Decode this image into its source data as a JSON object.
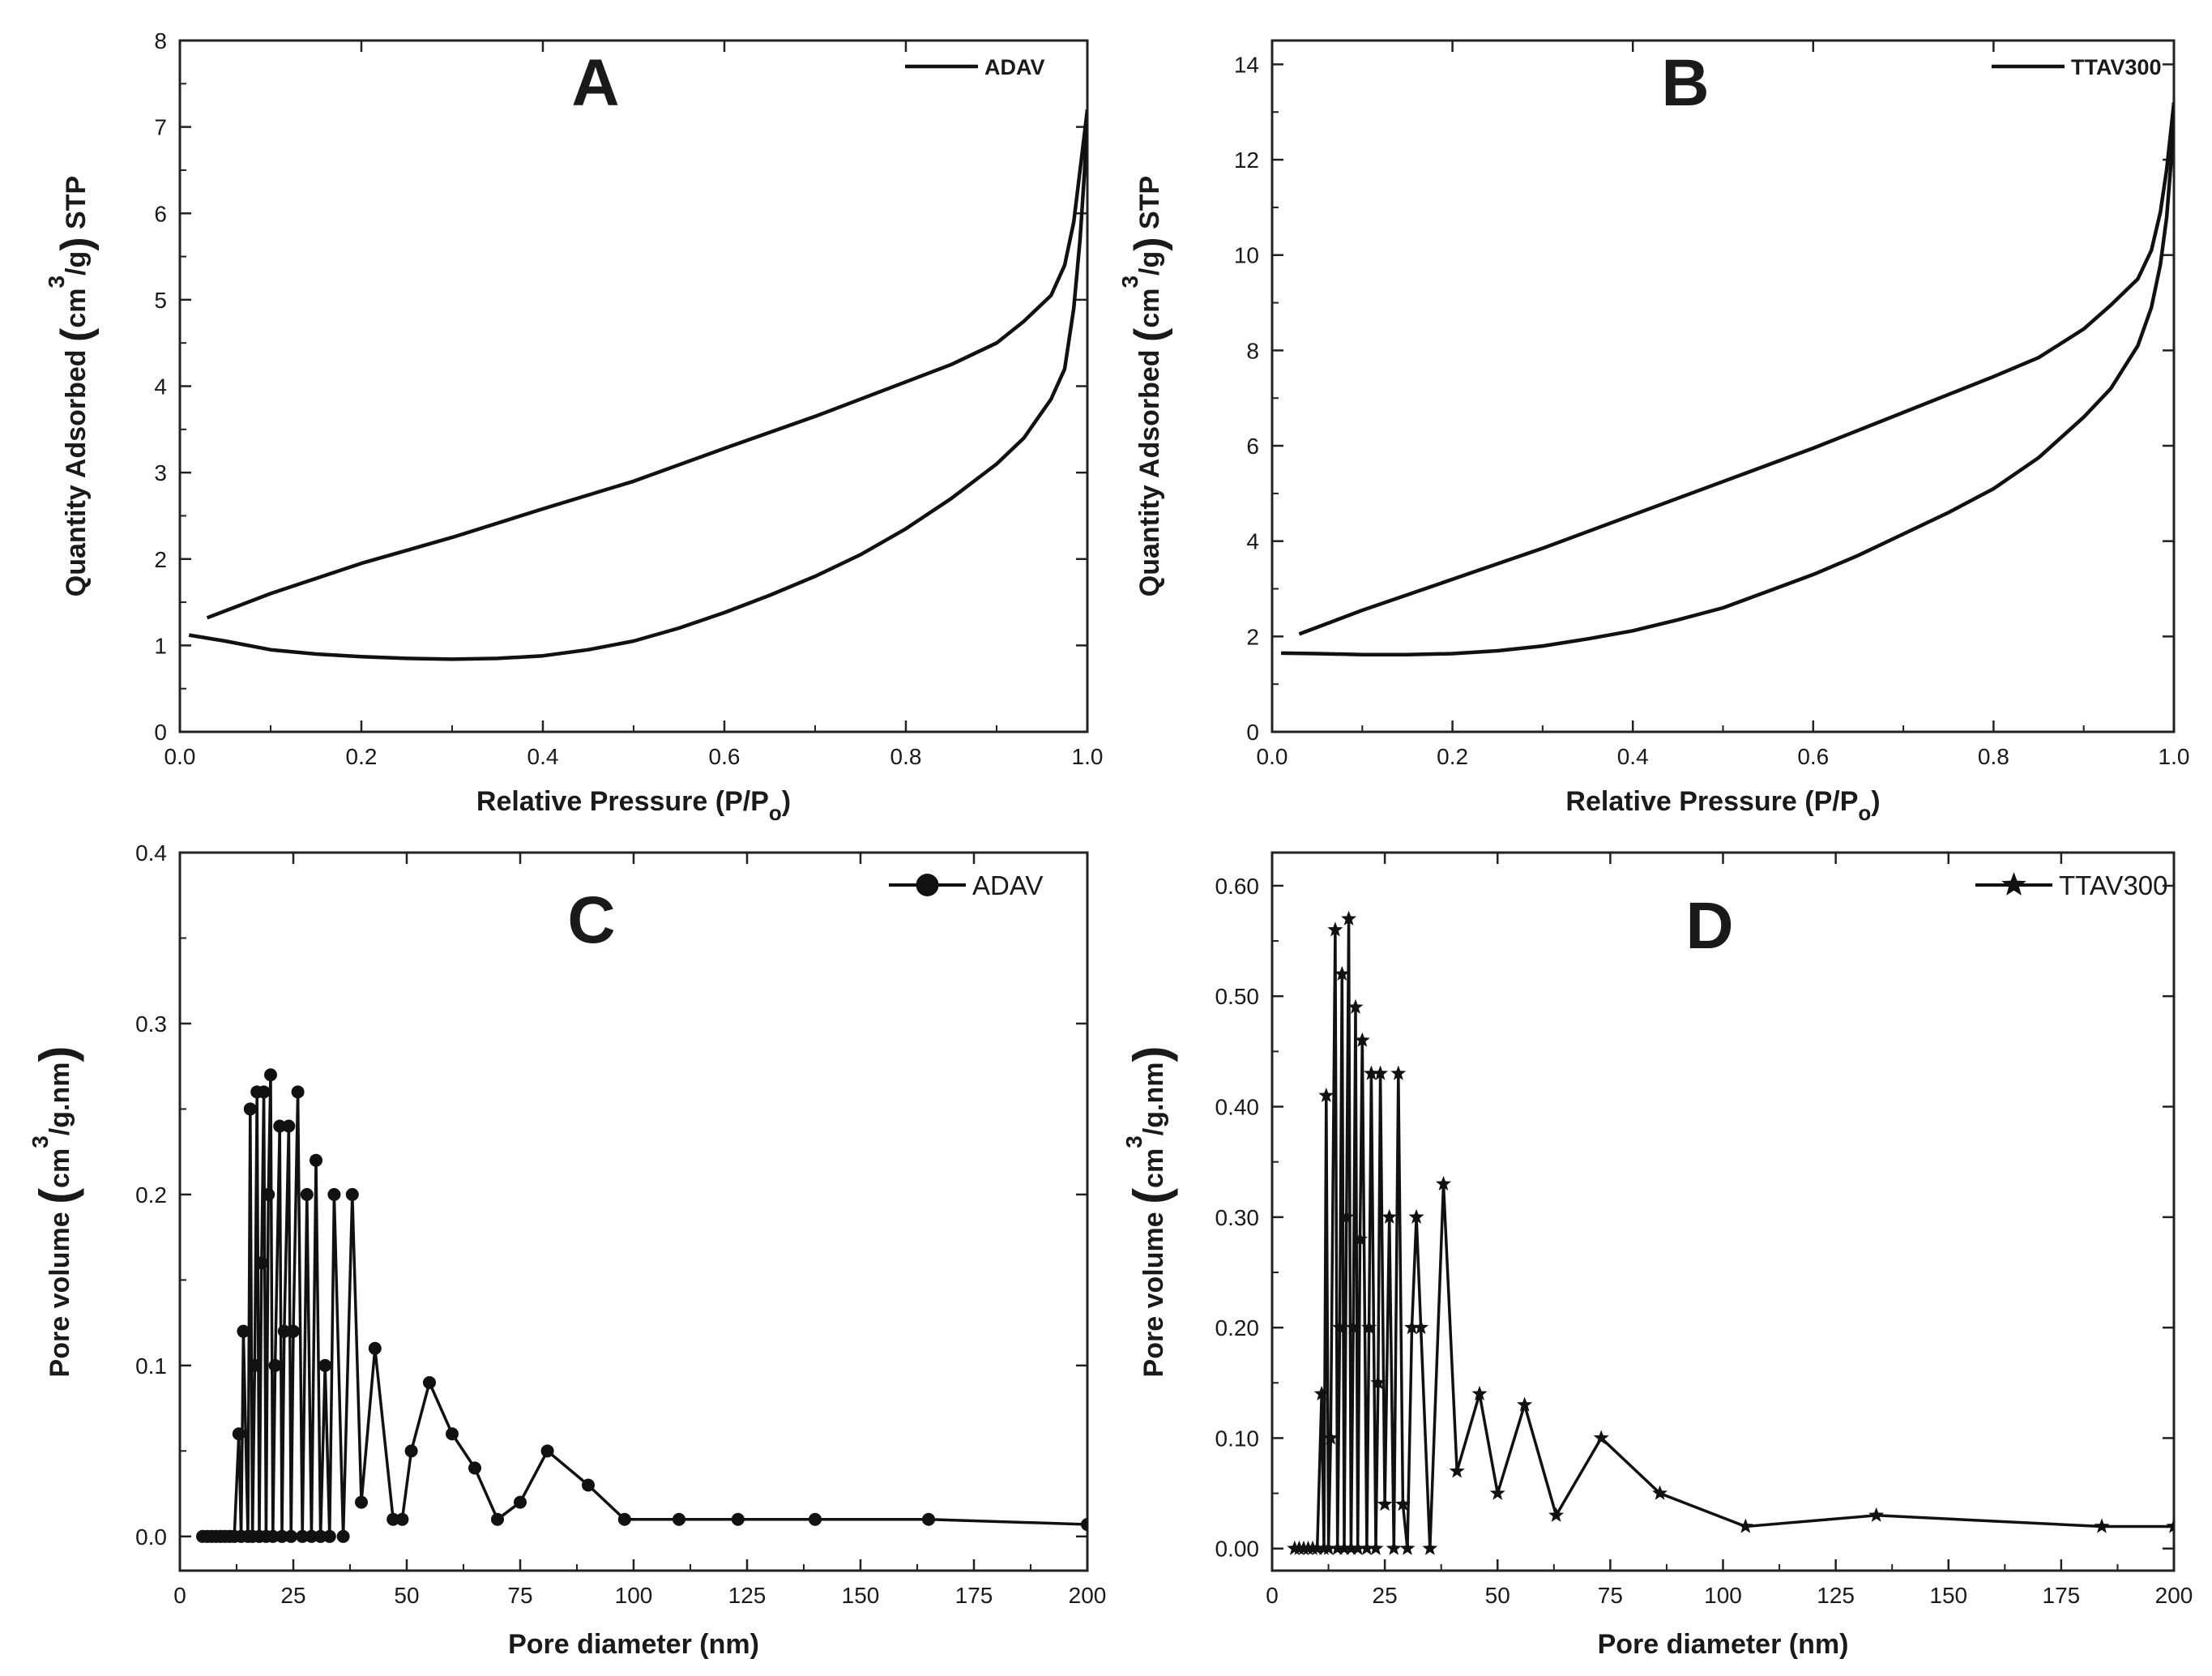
{
  "figure_title": "Nitrogen adsorption isotherms and pore size distributions",
  "chart_data": [
    {
      "id": "A",
      "type": "line",
      "panel_letter": "A",
      "xlabel": "Relative Pressure (P/P",
      "xlabel_sub": "o",
      "xlabel_end": ")",
      "ylabel_parts": [
        "Quantity Adsorbed ",
        "(",
        "cm",
        "3",
        "/g",
        ")",
        " STP"
      ],
      "xlim": [
        0,
        1
      ],
      "ylim": [
        0,
        8
      ],
      "xticks": [
        0,
        0.2,
        0.4,
        0.6,
        0.8,
        1.0
      ],
      "yticks": [
        0,
        1,
        2,
        3,
        4,
        5,
        6,
        7,
        8
      ],
      "legend": "ADAV",
      "legend_position": "top-right",
      "marker": "none",
      "series": [
        {
          "name": "ADAV adsorption",
          "x": [
            0.01,
            0.05,
            0.1,
            0.15,
            0.2,
            0.25,
            0.3,
            0.35,
            0.4,
            0.45,
            0.5,
            0.55,
            0.6,
            0.65,
            0.7,
            0.75,
            0.8,
            0.85,
            0.9,
            0.93,
            0.96,
            0.975,
            0.985,
            0.992,
            0.997,
            1.0
          ],
          "y": [
            1.12,
            1.05,
            0.95,
            0.9,
            0.87,
            0.85,
            0.84,
            0.85,
            0.88,
            0.95,
            1.05,
            1.2,
            1.38,
            1.58,
            1.8,
            2.05,
            2.35,
            2.7,
            3.1,
            3.4,
            3.85,
            4.2,
            4.9,
            5.7,
            6.5,
            7.2
          ]
        },
        {
          "name": "ADAV desorption",
          "x": [
            0.03,
            0.1,
            0.2,
            0.3,
            0.4,
            0.5,
            0.6,
            0.7,
            0.8,
            0.85,
            0.9,
            0.93,
            0.96,
            0.975,
            0.985,
            0.992,
            1.0
          ],
          "y": [
            1.32,
            1.6,
            1.95,
            2.25,
            2.58,
            2.9,
            3.28,
            3.65,
            4.05,
            4.25,
            4.5,
            4.75,
            5.05,
            5.4,
            5.9,
            6.5,
            7.2
          ]
        }
      ]
    },
    {
      "id": "B",
      "type": "line",
      "panel_letter": "B",
      "xlabel": "Relative Pressure (P/P",
      "xlabel_sub": "o",
      "xlabel_end": ")",
      "ylabel_parts": [
        "Quantity Adsorbed ",
        "(",
        "cm",
        "3",
        "/g",
        ")",
        " STP"
      ],
      "xlim": [
        0,
        1
      ],
      "ylim": [
        0,
        14.5
      ],
      "xticks": [
        0,
        0.2,
        0.4,
        0.6,
        0.8,
        1.0
      ],
      "yticks": [
        0,
        2,
        4,
        6,
        8,
        10,
        12,
        14
      ],
      "legend": "TTAV300",
      "legend_position": "top-right",
      "marker": "none",
      "series": [
        {
          "name": "TTAV300 adsorption",
          "x": [
            0.01,
            0.05,
            0.1,
            0.15,
            0.2,
            0.25,
            0.3,
            0.35,
            0.4,
            0.45,
            0.5,
            0.55,
            0.6,
            0.65,
            0.7,
            0.75,
            0.8,
            0.85,
            0.9,
            0.93,
            0.96,
            0.975,
            0.985,
            0.992,
            0.997,
            1.0
          ],
          "y": [
            1.65,
            1.64,
            1.62,
            1.62,
            1.64,
            1.7,
            1.8,
            1.95,
            2.12,
            2.35,
            2.6,
            2.95,
            3.3,
            3.7,
            4.15,
            4.6,
            5.1,
            5.75,
            6.6,
            7.2,
            8.1,
            8.9,
            9.8,
            10.8,
            12.0,
            13.2
          ]
        },
        {
          "name": "TTAV300 desorption",
          "x": [
            0.03,
            0.1,
            0.2,
            0.3,
            0.4,
            0.5,
            0.6,
            0.7,
            0.8,
            0.85,
            0.9,
            0.93,
            0.96,
            0.975,
            0.985,
            0.992,
            1.0
          ],
          "y": [
            2.05,
            2.55,
            3.2,
            3.85,
            4.55,
            5.25,
            5.95,
            6.7,
            7.45,
            7.85,
            8.45,
            8.95,
            9.5,
            10.1,
            10.9,
            11.8,
            13.2
          ]
        }
      ]
    },
    {
      "id": "C",
      "type": "line",
      "panel_letter": "C",
      "xlabel": "Pore diameter (nm)",
      "ylabel_parts": [
        "Pore volume ",
        "(",
        "cm",
        "3",
        "/g.nm",
        ")"
      ],
      "xlim": [
        0,
        200
      ],
      "ylim": [
        -0.02,
        0.4
      ],
      "xticks": [
        0,
        25,
        50,
        75,
        100,
        125,
        150,
        175,
        200
      ],
      "yticks": [
        0.0,
        0.1,
        0.2,
        0.3,
        0.4
      ],
      "ytick_format": 1,
      "legend": "ADAV",
      "legend_position": "top-right",
      "marker": "circle",
      "series": [
        {
          "name": "ADAV",
          "x": [
            5,
            6,
            7,
            8,
            9,
            10,
            11,
            12,
            13,
            13.5,
            14,
            15,
            15.5,
            16,
            16.5,
            17,
            17.5,
            18,
            18.5,
            19,
            19.5,
            20,
            20.5,
            21,
            22,
            22.5,
            23,
            24,
            24.5,
            25,
            26,
            27,
            28,
            29,
            30,
            31,
            32,
            33,
            34,
            36,
            38,
            40,
            43,
            47,
            49,
            51,
            55,
            60,
            65,
            70,
            75,
            81,
            90,
            98,
            110,
            123,
            140,
            165,
            200
          ],
          "y": [
            0,
            0,
            0,
            0,
            0,
            0,
            0,
            0,
            0.06,
            0,
            0.12,
            0,
            0.25,
            0,
            0.1,
            0.26,
            0,
            0.16,
            0.26,
            0,
            0.2,
            0.27,
            0,
            0.1,
            0.24,
            0,
            0.12,
            0.24,
            0,
            0.12,
            0.26,
            0,
            0.2,
            0,
            0.22,
            0,
            0.1,
            0,
            0.2,
            0,
            0.2,
            0.02,
            0.11,
            0.01,
            0.01,
            0.05,
            0.09,
            0.06,
            0.04,
            0.01,
            0.02,
            0.05,
            0.03,
            0.01,
            0.01,
            0.01,
            0.01,
            0.01,
            0.007
          ]
        }
      ]
    },
    {
      "id": "D",
      "type": "line",
      "panel_letter": "D",
      "xlabel": "Pore diameter (nm)",
      "ylabel_parts": [
        "Pore volume ",
        "(",
        "cm",
        "3",
        "/g.nm",
        ")"
      ],
      "xlim": [
        0,
        200
      ],
      "ylim": [
        -0.02,
        0.63
      ],
      "xticks": [
        0,
        25,
        50,
        75,
        100,
        125,
        150,
        175,
        200
      ],
      "yticks": [
        0.0,
        0.1,
        0.2,
        0.3,
        0.4,
        0.5,
        0.6
      ],
      "ytick_format": 2,
      "legend": "TTAV300",
      "legend_position": "top-right",
      "marker": "star",
      "series": [
        {
          "name": "TTAV300",
          "x": [
            5,
            6,
            7,
            8,
            9,
            10,
            11,
            11.5,
            12,
            12.5,
            13,
            14,
            14.5,
            15,
            15.5,
            16,
            16.5,
            17,
            17.5,
            18,
            18.5,
            19,
            19.5,
            20,
            21,
            21.5,
            22,
            23,
            23.5,
            24,
            25,
            26,
            27,
            28,
            29,
            30,
            31,
            32,
            33,
            35,
            38,
            41,
            46,
            50,
            56,
            63,
            73,
            86,
            105,
            134,
            184,
            200
          ],
          "y": [
            0,
            0,
            0,
            0,
            0,
            0,
            0.14,
            0,
            0.41,
            0,
            0.1,
            0.56,
            0,
            0.2,
            0.52,
            0,
            0.3,
            0.57,
            0,
            0.2,
            0.49,
            0,
            0.28,
            0.46,
            0,
            0.2,
            0.43,
            0,
            0.15,
            0.43,
            0.04,
            0.3,
            0,
            0.43,
            0.04,
            0,
            0.2,
            0.3,
            0.2,
            0,
            0.33,
            0.07,
            0.14,
            0.05,
            0.13,
            0.03,
            0.1,
            0.05,
            0.02,
            0.03,
            0.02,
            0.02
          ]
        }
      ]
    }
  ]
}
